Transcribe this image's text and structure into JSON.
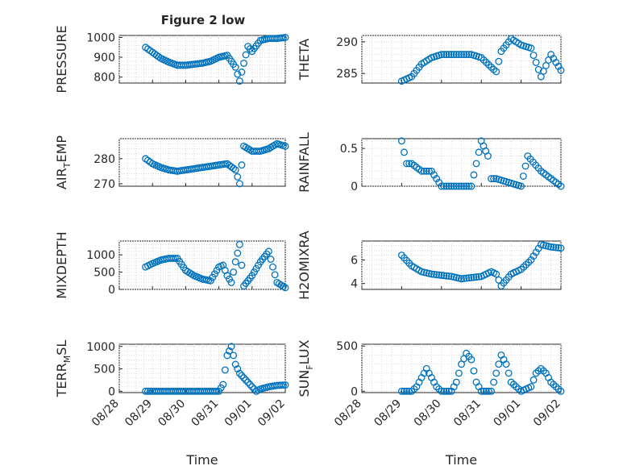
{
  "figure": {
    "title": "Figure 2 low",
    "background": "#ffffff",
    "marker_color": "#0072bd"
  },
  "chart_data": [
    {
      "type": "scatter",
      "id": "pressure",
      "ylabel": "PRESSURE",
      "xlabel": "",
      "ylim": [
        770,
        1010
      ],
      "yticks": [
        800,
        900,
        1000
      ],
      "xlim": [
        "08/28",
        "09/02"
      ],
      "xticks": [],
      "xticklabels": [],
      "grid": true,
      "series": [
        {
          "x": [
            "08/28 19:00",
            "08/29 00:00",
            "08/29 06:00",
            "08/29 12:00",
            "08/29 18:00",
            "08/30 00:00",
            "08/30 06:00",
            "08/30 12:00",
            "08/30 18:00",
            "08/31 00:00",
            "08/31 06:00",
            "08/31 09:00",
            "08/31 12:00",
            "08/31 15:00",
            "08/31 18:00",
            "08/31 21:00",
            "09/01 00:00",
            "09/01 06:00",
            "09/01 12:00",
            "09/01 18:00",
            "09/02 00:00"
          ],
          "y": [
            950,
            925,
            895,
            875,
            860,
            860,
            865,
            870,
            880,
            900,
            910,
            880,
            850,
            780,
            870,
            955,
            930,
            985,
            995,
            995,
            1000
          ]
        }
      ]
    },
    {
      "type": "scatter",
      "id": "theta",
      "ylabel": "THETA",
      "xlabel": "",
      "ylim": [
        283.5,
        291
      ],
      "yticks": [
        285,
        290
      ],
      "xlim": [
        "08/28",
        "09/02"
      ],
      "xticks": [],
      "xticklabels": [],
      "grid": true,
      "series": [
        {
          "x": [
            "08/29 00:00",
            "08/29 06:00",
            "08/29 12:00",
            "08/29 18:00",
            "08/30 00:00",
            "08/30 06:00",
            "08/30 12:00",
            "08/30 18:00",
            "08/31 00:00",
            "08/31 06:00",
            "08/31 09:00",
            "08/31 12:00",
            "08/31 18:00",
            "09/01 00:00",
            "09/01 06:00",
            "09/01 12:00",
            "09/01 18:00",
            "09/02 00:00"
          ],
          "y": [
            283.8,
            284.5,
            286.5,
            287.5,
            288,
            288,
            288,
            288,
            287.5,
            286,
            285.3,
            288.5,
            290.5,
            289.5,
            289,
            284.5,
            288,
            285.5
          ]
        }
      ]
    },
    {
      "type": "scatter",
      "id": "air_temp",
      "ylabel": "AIR_TEMP",
      "xlabel": "",
      "ylim": [
        269,
        288
      ],
      "yticks": [
        270,
        280
      ],
      "xlim": [
        "08/28",
        "09/02"
      ],
      "xticks": [],
      "xticklabels": [],
      "grid": true,
      "series": [
        {
          "x": [
            "08/28 19:00",
            "08/29 00:00",
            "08/29 06:00",
            "08/29 12:00",
            "08/29 18:00",
            "08/30 00:00",
            "08/30 06:00",
            "08/30 12:00",
            "08/30 18:00",
            "08/31 00:00",
            "08/31 06:00",
            "08/31 12:00",
            "08/31 15:00",
            "08/31 18:00",
            "09/01 00:00",
            "09/01 06:00",
            "09/01 12:00",
            "09/01 18:00",
            "09/02 00:00"
          ],
          "y": [
            280,
            278,
            276.5,
            275.5,
            275,
            275.5,
            276,
            276.5,
            277,
            277.5,
            278,
            275.5,
            270,
            285,
            283,
            283,
            284,
            286,
            285
          ]
        }
      ]
    },
    {
      "type": "scatter",
      "id": "rainfall",
      "ylabel": "RAINFALL",
      "xlabel": "",
      "ylim": [
        0,
        0.63
      ],
      "yticks": [
        0,
        0.5
      ],
      "xlim": [
        "08/28",
        "09/02"
      ],
      "xticks": [],
      "xticklabels": [],
      "grid": true,
      "series": [
        {
          "x": [
            "08/29 00:00",
            "08/29 03:00",
            "08/29 06:00",
            "08/29 12:00",
            "08/29 18:00",
            "08/30 00:00",
            "08/30 06:00",
            "08/30 12:00",
            "08/30 18:00",
            "08/31 00:00",
            "08/31 04:00",
            "08/31 06:00",
            "08/31 09:00",
            "09/01 00:00",
            "09/01 04:00",
            "09/01 12:00",
            "09/01 18:00",
            "09/02 00:00"
          ],
          "y": [
            0.6,
            0.3,
            0.3,
            0.2,
            0.2,
            0,
            0,
            0,
            0,
            0.6,
            0.4,
            0.1,
            0.1,
            0,
            0.4,
            0.2,
            0.1,
            0
          ]
        }
      ]
    },
    {
      "type": "scatter",
      "id": "mixdepth",
      "ylabel": "MIXDEPTH",
      "xlabel": "",
      "ylim": [
        0,
        1400
      ],
      "yticks": [
        0,
        500,
        1000
      ],
      "xlim": [
        "08/28",
        "09/02"
      ],
      "xticks": [],
      "xticklabels": [],
      "grid": true,
      "series": [
        {
          "x": [
            "08/28 19:00",
            "08/29 00:00",
            "08/29 06:00",
            "08/29 12:00",
            "08/29 18:00",
            "08/30 00:00",
            "08/30 06:00",
            "08/30 12:00",
            "08/30 18:00",
            "08/31 00:00",
            "08/31 03:00",
            "08/31 06:00",
            "08/31 09:00",
            "08/31 12:00",
            "08/31 15:00",
            "08/31 18:00",
            "09/01 00:00",
            "09/01 06:00",
            "09/01 12:00",
            "09/01 18:00",
            "09/02 00:00"
          ],
          "y": [
            650,
            750,
            850,
            900,
            900,
            550,
            400,
            300,
            250,
            650,
            700,
            400,
            200,
            800,
            1300,
            100,
            400,
            800,
            1100,
            200,
            50
          ]
        }
      ]
    },
    {
      "type": "scatter",
      "id": "h2omixra",
      "ylabel": "H2OMIXRA",
      "xlabel": "",
      "ylim": [
        3.5,
        7.6
      ],
      "yticks": [
        4,
        6
      ],
      "xlim": [
        "08/28",
        "09/02"
      ],
      "xticks": [],
      "xticklabels": [],
      "grid": true,
      "series": [
        {
          "x": [
            "08/29 00:00",
            "08/29 06:00",
            "08/29 12:00",
            "08/29 18:00",
            "08/30 00:00",
            "08/30 06:00",
            "08/30 12:00",
            "08/30 18:00",
            "08/31 00:00",
            "08/31 06:00",
            "08/31 09:00",
            "08/31 12:00",
            "08/31 18:00",
            "09/01 00:00",
            "09/01 06:00",
            "09/01 12:00",
            "09/01 18:00",
            "09/02 00:00"
          ],
          "y": [
            6.4,
            5.5,
            5,
            4.8,
            4.7,
            4.6,
            4.4,
            4.5,
            4.6,
            5.0,
            4.8,
            3.8,
            4.8,
            5.2,
            6.0,
            7.3,
            7.1,
            7.0
          ]
        }
      ]
    },
    {
      "type": "scatter",
      "id": "terr_msl",
      "ylabel": "TERR_MSL",
      "xlabel": "Time",
      "ylim": [
        -30,
        1050
      ],
      "yticks": [
        0,
        500,
        1000
      ],
      "xlim": [
        "08/28",
        "09/02"
      ],
      "xticks": [
        "08/28",
        "08/29",
        "08/30",
        "08/31",
        "09/01",
        "09/02"
      ],
      "xticklabels": [
        "08/28",
        "08/29",
        "08/30",
        "08/31",
        "09/01",
        "09/02"
      ],
      "grid": true,
      "series": [
        {
          "x": [
            "08/28 19:00",
            "08/29 00:00",
            "08/29 12:00",
            "08/30 00:00",
            "08/30 12:00",
            "08/31 00:00",
            "08/31 03:00",
            "08/31 06:00",
            "08/31 09:00",
            "08/31 12:00",
            "08/31 15:00",
            "08/31 18:00",
            "09/01 00:00",
            "09/01 03:00",
            "09/01 06:00",
            "09/01 12:00",
            "09/01 18:00",
            "09/02 00:00"
          ],
          "y": [
            0,
            0,
            0,
            0,
            0,
            0,
            150,
            800,
            1000,
            600,
            400,
            300,
            100,
            0,
            50,
            100,
            130,
            140
          ]
        }
      ]
    },
    {
      "type": "scatter",
      "id": "sun_flux",
      "ylabel": "SUN_FLUX",
      "xlabel": "Time",
      "ylim": [
        -15,
        520
      ],
      "yticks": [
        0,
        500
      ],
      "xlim": [
        "08/28",
        "09/02"
      ],
      "xticks": [
        "08/28",
        "08/29",
        "08/30",
        "08/31",
        "09/01",
        "09/02"
      ],
      "xticklabels": [
        "08/28",
        "08/29",
        "08/30",
        "08/31",
        "09/01",
        "09/02"
      ],
      "grid": true,
      "series": [
        {
          "x": [
            "08/29 00:00",
            "08/29 06:00",
            "08/29 09:00",
            "08/29 12:00",
            "08/29 15:00",
            "08/29 18:00",
            "08/29 21:00",
            "08/30 00:00",
            "08/30 06:00",
            "08/30 09:00",
            "08/30 12:00",
            "08/30 15:00",
            "08/30 18:00",
            "08/30 21:00",
            "08/31 00:00",
            "08/31 06:00",
            "08/31 09:00",
            "08/31 12:00",
            "08/31 15:00",
            "08/31 18:00",
            "09/01 00:00",
            "09/01 06:00",
            "09/01 09:00",
            "09/01 12:00",
            "09/01 15:00",
            "09/01 18:00",
            "09/02 00:00"
          ],
          "y": [
            0,
            0,
            50,
            150,
            250,
            150,
            50,
            0,
            0,
            100,
            300,
            420,
            350,
            100,
            0,
            0,
            200,
            400,
            300,
            100,
            0,
            50,
            200,
            250,
            200,
            100,
            0
          ]
        }
      ]
    }
  ]
}
